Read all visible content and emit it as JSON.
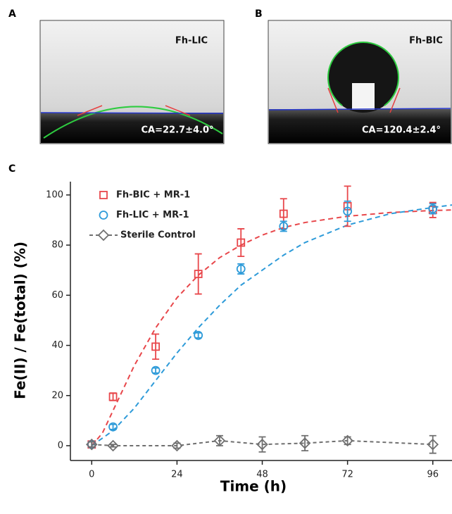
{
  "panels": [
    {
      "label": "A",
      "name": "Fh-LIC",
      "contact_angle": "CA=22.7±4.0°"
    },
    {
      "label": "B",
      "name": "Fh-BIC",
      "contact_angle": "CA=120.4±2.4°"
    }
  ],
  "chart_data": {
    "type": "scatter",
    "panel_label": "C",
    "x_label": "Time (h)",
    "y_label": "Fe(II) / Fe(total) (%)",
    "xlim": [
      -6,
      101.4
    ],
    "ylim": [
      -5.9,
      105.3
    ],
    "xticks": [
      0,
      24,
      48,
      72,
      96
    ],
    "yticks": [
      0,
      20,
      40,
      60,
      80,
      100
    ],
    "legend": "upper left",
    "series": [
      {
        "name": "Fh-BIC + MR-1",
        "color": "#e8474b",
        "marker": "square",
        "x": [
          0,
          6,
          18,
          30,
          42,
          54,
          72,
          96
        ],
        "values": [
          0.5,
          19.5,
          39.5,
          68.5,
          81,
          92.5,
          95.5,
          94
        ],
        "errors": [
          1,
          1.5,
          5,
          8,
          5.5,
          6,
          8,
          3
        ]
      },
      {
        "name": "Fh-LIC + MR-1",
        "color": "#2e9bd9",
        "marker": "circle",
        "x": [
          0,
          6,
          18,
          30,
          42,
          54,
          72,
          96
        ],
        "values": [
          0.5,
          7.5,
          30,
          44,
          70.5,
          87.5,
          93.5,
          94.5
        ],
        "errors": [
          1,
          1,
          1,
          1,
          2,
          2,
          4,
          2
        ]
      },
      {
        "name": "Sterile Control",
        "color": "#707070",
        "marker": "diamond",
        "line": true,
        "x": [
          0,
          6,
          24,
          36,
          48,
          60,
          72,
          96
        ],
        "values": [
          0.5,
          0,
          0,
          2,
          0.5,
          1,
          2,
          0.5
        ],
        "errors": [
          1,
          0.5,
          1,
          2,
          3,
          3,
          1.5,
          3.5
        ]
      }
    ],
    "fits": [
      {
        "color": "#e8474b",
        "x": [
          0,
          3,
          6,
          12,
          18,
          24,
          30,
          36,
          42,
          48,
          54,
          60,
          72,
          84,
          96,
          101.4
        ],
        "values": [
          0,
          5,
          14,
          32,
          47,
          59,
          68,
          75,
          80,
          84,
          87,
          89,
          91.5,
          93,
          93.8,
          94
        ]
      },
      {
        "color": "#2e9bd9",
        "x": [
          0,
          6,
          12,
          18,
          24,
          30,
          36,
          42,
          48,
          54,
          60,
          72,
          84,
          96,
          101.4
        ],
        "values": [
          0,
          6,
          15,
          26,
          37,
          47,
          56,
          64,
          70,
          76,
          81,
          88,
          92.5,
          95,
          96
        ]
      }
    ]
  }
}
